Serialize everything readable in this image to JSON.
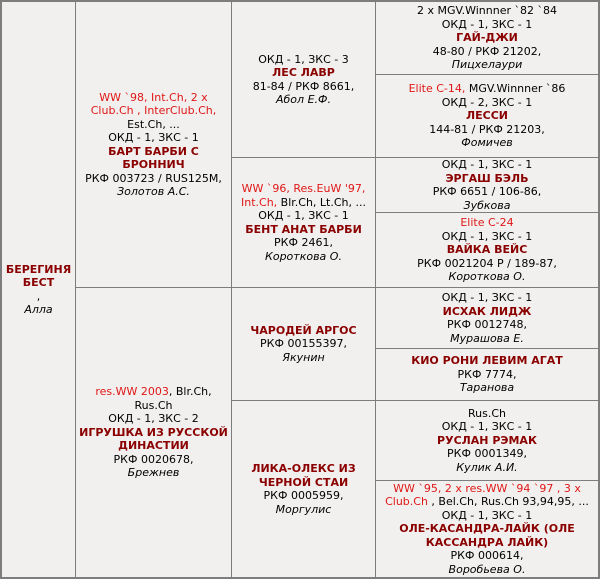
{
  "colors": {
    "title_red": "#e01717",
    "name_dark_red": "#8b0000",
    "text_black": "#000000",
    "background": "#f1f0ee",
    "grid_line": "#7d7d7d"
  },
  "pedigree": {
    "cells": {
      "subject": {
        "name": "БЕРЕГИНЯ БЕСТ",
        "reg": ",",
        "breeder": "Алла"
      },
      "f": {
        "titles": [
          {
            "text": "WW `98, Int.Ch, 2 x Club.Ch , InterClub.Ch,",
            "red": true
          },
          {
            "text": " Est.Ch, ...",
            "red": false
          }
        ],
        "awards": "ОКД - 1, ЗКС - 1",
        "name": "БАРТ БАРБИ С БРОННИЧ",
        "reg": "РКФ 003723 / RUS125M,",
        "breeder": "Золотов А.С."
      },
      "m": {
        "titles": [
          {
            "text": "res.WW 2003",
            "red": true
          },
          {
            "text": ", Blr.Ch, Rus.Ch",
            "red": false
          }
        ],
        "awards": "ОКД - 1, ЗКС - 2",
        "name": "ИГРУШКА ИЗ РУССКОЙ ДИНАСТИИ",
        "reg": "РКФ 0020678,",
        "breeder": "Брежнев"
      },
      "ff": {
        "awards": "ОКД - 1, ЗКС - 3",
        "name": "ЛЕС ЛАВР",
        "reg": "81-84 / РКФ 8661,",
        "breeder": "Абол Е.Ф."
      },
      "fm": {
        "titles": [
          {
            "text": "WW `96, Res.EuW '97, Int.Ch,",
            "red": true
          },
          {
            "text": " Blr.Ch, Lt.Ch, ...",
            "red": false
          }
        ],
        "awards": "ОКД - 1, ЗКС - 1",
        "name": "БЕНТ АНАТ БАРБИ",
        "reg": "РКФ 2461,",
        "breeder": "Короткова О."
      },
      "mf": {
        "name": "ЧАРОДЕЙ АРГОС",
        "reg": "РКФ 00155397,",
        "breeder": "Якунин"
      },
      "mm": {
        "name": "ЛИКА-ОЛЕКС ИЗ ЧЕРНОЙ СТАИ",
        "reg": "РКФ 0005959,",
        "breeder": "Моргулис"
      },
      "fff": {
        "titles": [
          {
            "text": "2 x MGV.Winnner `82 `84",
            "red": false
          }
        ],
        "awards": "ОКД - 1, ЗКС - 1",
        "name": "ГАЙ-ДЖИ",
        "reg": "48-80 / РКФ 21202,",
        "breeder": "Пицхелаури"
      },
      "ffm": {
        "titles": [
          {
            "text": "Elite C-14,",
            "red": true
          },
          {
            "text": " MGV.Winnner `86",
            "red": false
          }
        ],
        "awards": "ОКД - 2, ЗКС - 1",
        "name": "ЛЕССИ",
        "reg": "144-81 / РКФ 21203,",
        "breeder": "Фомичев"
      },
      "fmf": {
        "awards": "ОКД - 1, ЗКС - 1",
        "name": "ЭРГАШ БЭЛЬ",
        "reg": "РКФ 6651 / 106-86,",
        "breeder": "Зубкова"
      },
      "fmm": {
        "titles": [
          {
            "text": "Elite C-24",
            "red": true
          }
        ],
        "awards": "ОКД - 1, ЗКС - 1",
        "name": "ВАЙКА ВЕЙС",
        "reg": "РКФ 0021204 Р / 189-87,",
        "breeder": "Короткова О."
      },
      "mff": {
        "awards": "ОКД - 1, ЗКС - 1",
        "name": "ИСХАК ЛИДЖ",
        "reg": "РКФ 0012748,",
        "breeder": "Мурашова Е."
      },
      "mfm": {
        "name": "КИО РОНИ ЛЕВИМ АГАТ",
        "reg": "РКФ 7774,",
        "breeder": "Таранова"
      },
      "mmf": {
        "titles": [
          {
            "text": "Rus.Ch",
            "red": false
          }
        ],
        "awards": "ОКД - 1, ЗКС - 1",
        "name": "РУСЛАН РЭМАК",
        "reg": "РКФ 0001349,",
        "breeder": "Кулик А.И."
      },
      "mmm": {
        "titles": [
          {
            "text": "WW `95, 2 x res.WW `94 `97 , 3 x Club.Ch",
            "red": true
          },
          {
            "text": " , Bel.Ch, Rus.Ch 93,94,95, ...",
            "red": false
          }
        ],
        "awards": "ОКД - 1, ЗКС - 1",
        "name": "ОЛЕ-КАСАНДРА-ЛАЙК (ОЛЕ КАССАНДРА ЛАЙК)",
        "reg": "РКФ 000614,",
        "breeder": "Воробьева О."
      }
    }
  }
}
